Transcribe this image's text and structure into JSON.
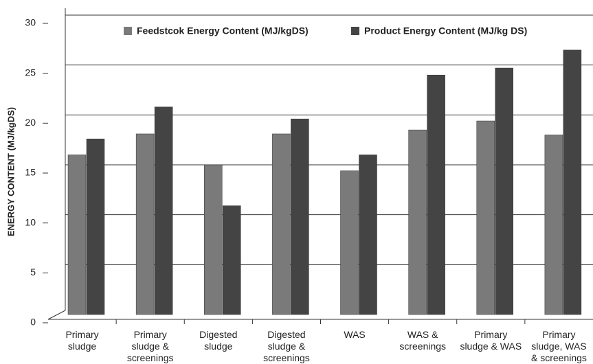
{
  "chart_data": {
    "type": "bar",
    "y_label": "ENERGY CONTENT (MJ/kgDS)",
    "categories": [
      "Primary sludge",
      "Primary sludge & screenings",
      "Digested sludge",
      "Digested sludge & screenings",
      "WAS",
      "WAS & screenings",
      "Primary sludge & WAS",
      "Primary sludge, WAS & screenings"
    ],
    "series": [
      {
        "name": "Feedstcok Energy Content (MJ/kgDS)",
        "color": "#7a7a7a",
        "values": [
          16,
          18.1,
          15,
          18.1,
          14.4,
          18.5,
          19.4,
          18
        ]
      },
      {
        "name": "Product Energy Content (MJ/kg DS)",
        "color": "#444444",
        "values": [
          17.6,
          20.8,
          10.9,
          19.6,
          16,
          24,
          24.7,
          26.5
        ]
      }
    ],
    "ylim": [
      0,
      30
    ],
    "yticks": [
      0,
      5,
      10,
      15,
      20,
      25,
      30
    ],
    "grid": true
  }
}
